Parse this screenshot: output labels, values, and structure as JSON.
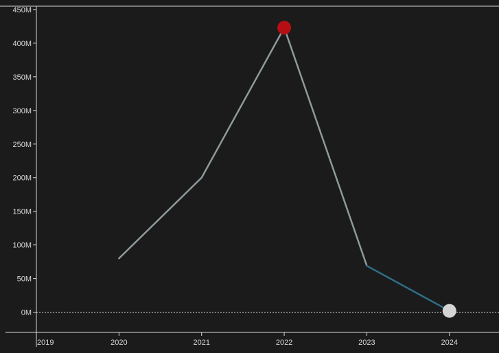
{
  "chart_data": {
    "type": "line",
    "title": "",
    "xlabel": "",
    "ylabel": "",
    "x": [
      2020,
      2021,
      2022,
      2023,
      2024
    ],
    "series": [
      {
        "values": [
          80,
          200,
          423,
          69,
          2
        ]
      }
    ],
    "segment_colors": [
      "#8e9a9c",
      "#8e9a9c",
      "#8e9a9c",
      "#2e6e88"
    ],
    "x_ticks": [
      "2019",
      "2020",
      "2021",
      "2022",
      "2023",
      "2024"
    ],
    "y_ticks": [
      "0M",
      "50M",
      "100M",
      "150M",
      "200M",
      "250M",
      "300M",
      "350M",
      "400M",
      "450M"
    ],
    "xlim": [
      2019,
      2024.6
    ],
    "ylim": [
      -30,
      455
    ],
    "highlights": [
      {
        "x": 2022,
        "y": 423,
        "color": "#b50f14",
        "label": "peak"
      },
      {
        "x": 2024,
        "y": 2,
        "color": "#d4d4d4",
        "label": "latest"
      }
    ],
    "zero_line": true,
    "grid": false,
    "background": "#1b1b1b",
    "axis_color": "#d9d9d9"
  }
}
